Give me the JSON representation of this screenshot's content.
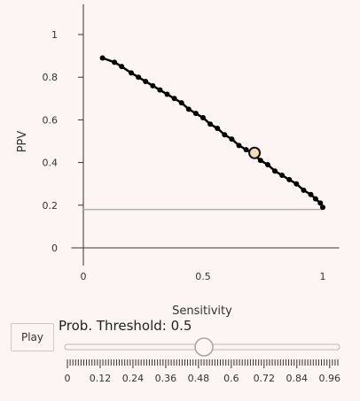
{
  "chart_data": {
    "type": "line",
    "title": "",
    "xlabel": "Sensitivity",
    "ylabel": "PPV",
    "xlim": [
      -0.05,
      1.05
    ],
    "ylim": [
      -0.05,
      1.1
    ],
    "x_ticks": [
      0,
      0.5,
      1
    ],
    "x_tick_labels": [
      "0",
      "0.5",
      "1"
    ],
    "y_ticks": [
      0,
      0.2,
      0.4,
      0.6,
      0.8,
      1
    ],
    "y_tick_labels": [
      "0",
      "0.2",
      "0.4",
      "0.6",
      "0.8",
      "1"
    ],
    "grid": false,
    "baseline": 0.18,
    "series": [
      {
        "type": "line-markers",
        "x": [
          0.08,
          0.13,
          0.16,
          0.2,
          0.23,
          0.26,
          0.29,
          0.32,
          0.35,
          0.38,
          0.41,
          0.44,
          0.47,
          0.5,
          0.53,
          0.56,
          0.59,
          0.62,
          0.65,
          0.68,
          0.71,
          0.74,
          0.77,
          0.8,
          0.83,
          0.86,
          0.89,
          0.92,
          0.95,
          0.97,
          0.99,
          1.0
        ],
        "y": [
          0.89,
          0.87,
          0.85,
          0.82,
          0.8,
          0.78,
          0.76,
          0.74,
          0.72,
          0.7,
          0.68,
          0.65,
          0.63,
          0.61,
          0.58,
          0.56,
          0.53,
          0.51,
          0.48,
          0.46,
          0.44,
          0.41,
          0.39,
          0.36,
          0.34,
          0.32,
          0.3,
          0.27,
          0.25,
          0.23,
          0.21,
          0.19
        ]
      }
    ],
    "highlight": {
      "x": 0.715,
      "y": 0.445,
      "fill": "#f3deb8",
      "stroke": "#111111"
    },
    "colors": {
      "line": "#000000",
      "baseline": "#b0b0b0",
      "axis": "#333333"
    }
  },
  "controls": {
    "play_label": "Play",
    "threshold_label": "Prob. Threshold: 0.5",
    "slider": {
      "min": 0,
      "max": 0.99,
      "value": 0.5,
      "major_tick_labels": [
        "0",
        "0.12",
        "0.24",
        "0.36",
        "0.48",
        "0.6",
        "0.72",
        "0.84",
        "0.96"
      ]
    }
  }
}
